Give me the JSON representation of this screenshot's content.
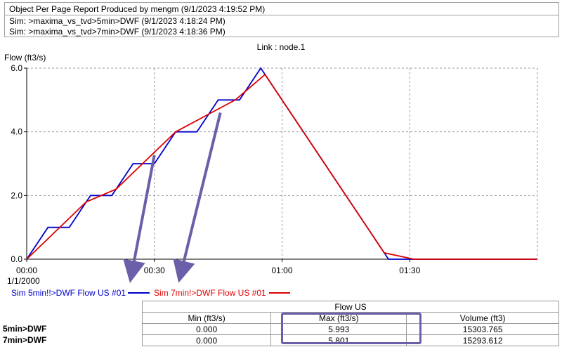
{
  "header": {
    "report_title": "Object Per Page Report Produced by mengm (9/1/2023 4:19:52 PM)",
    "sim1": "Sim: >maxima_vs_tvd>5min>DWF (9/1/2023 4:18:24 PM)",
    "sim2": "Sim: >maxima_vs_tvd>7min>DWF (9/1/2023 4:18:36 PM)"
  },
  "chart_data": {
    "type": "line",
    "title": "Link : node.1",
    "ylabel": "Flow (ft3/s)",
    "xlabel": "",
    "date_label": "1/1/2000",
    "x_unit": "minutes",
    "xlim": [
      0,
      120
    ],
    "ylim": [
      0,
      6
    ],
    "x_ticks": [
      {
        "value": 0,
        "label": "00:00"
      },
      {
        "value": 30,
        "label": "00:30"
      },
      {
        "value": 60,
        "label": "01:00"
      },
      {
        "value": 90,
        "label": "01:30"
      }
    ],
    "y_ticks": [
      {
        "value": 0,
        "label": "0.0"
      },
      {
        "value": 2,
        "label": "2.0"
      },
      {
        "value": 4,
        "label": "4.0"
      },
      {
        "value": 6,
        "label": "6.0"
      }
    ],
    "grid": true,
    "legend_position": "bottom-left",
    "series": [
      {
        "name": "Sim 5min!!>DWF Flow US #01",
        "color": "#0000cc",
        "points": [
          [
            0,
            0
          ],
          [
            5,
            1
          ],
          [
            10,
            1
          ],
          [
            15,
            2
          ],
          [
            20,
            2
          ],
          [
            25,
            3
          ],
          [
            30,
            3
          ],
          [
            35,
            4
          ],
          [
            40,
            4
          ],
          [
            45,
            5
          ],
          [
            50,
            5
          ],
          [
            55,
            6
          ],
          [
            60,
            5
          ],
          [
            85,
            0
          ],
          [
            120,
            0
          ]
        ]
      },
      {
        "name": "Sim 7min!>DWF Flow US #01",
        "color": "#dd0000",
        "points": [
          [
            0,
            0
          ],
          [
            14,
            1.8
          ],
          [
            21,
            2.2
          ],
          [
            35,
            4.0
          ],
          [
            42,
            4.5
          ],
          [
            49,
            5.0
          ],
          [
            56,
            5.8
          ],
          [
            84,
            0.2
          ],
          [
            91,
            0
          ],
          [
            120,
            0
          ]
        ]
      }
    ]
  },
  "table": {
    "group_header": "Flow US",
    "columns": [
      "Min (ft3/s)",
      "Max (ft3/s)",
      "Volume (ft3)"
    ],
    "rows": [
      {
        "label": "5min>DWF",
        "min": "0.000",
        "max": "5.993",
        "volume": "15303.765"
      },
      {
        "label": "7min>DWF",
        "min": "0.000",
        "max": "5.801",
        "volume": "15293.612"
      }
    ]
  },
  "annotation": {
    "arrow_color": "#6a5fa8",
    "highlight_color": "#6a5fa8"
  }
}
